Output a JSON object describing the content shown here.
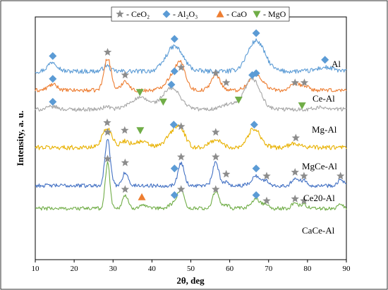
{
  "chart_data": {
    "type": "line",
    "xlabel": "2θ, deg",
    "ylabel": "Intensity, a. u.",
    "xlim": [
      10,
      90
    ],
    "xticks": [
      10,
      20,
      30,
      40,
      50,
      60,
      70,
      80,
      90
    ],
    "grid": false,
    "legend": {
      "position": "top-center",
      "entries": [
        {
          "marker": "star",
          "label": "- CeO₂",
          "color": "#8c8c8c"
        },
        {
          "marker": "diamond",
          "label": "- Al₂O₃",
          "color": "#5b9bd5"
        },
        {
          "marker": "triangle-up",
          "label": "- CaO",
          "color": "#ed7d31"
        },
        {
          "marker": "triangle-down",
          "label": "- MgO",
          "color": "#70ad47"
        }
      ]
    },
    "series": [
      {
        "name": "Al",
        "color": "#5b9bd5",
        "baseline": 20,
        "noise": 1.2,
        "peaks": [
          [
            14.5,
            5,
            1.2
          ],
          [
            28.3,
            3,
            0.8
          ],
          [
            45.8,
            13,
            2.2
          ],
          [
            66.8,
            16,
            2.2
          ],
          [
            84.5,
            2,
            2
          ]
        ],
        "markers": [
          {
            "type": "diamond",
            "x": 14.5,
            "y": 28
          },
          {
            "type": "diamond",
            "x": 45.8,
            "y": 37
          },
          {
            "type": "diamond",
            "x": 66.8,
            "y": 40
          },
          {
            "type": "diamond",
            "x": 84.5,
            "y": 26
          }
        ]
      },
      {
        "name": "Ce-Al",
        "color": "#ed7d31",
        "baseline": 10,
        "noise": 1,
        "peaks": [
          [
            14.5,
            3,
            1.2
          ],
          [
            28.6,
            17,
            0.9
          ],
          [
            33.1,
            5,
            0.9
          ],
          [
            45.8,
            8,
            2
          ],
          [
            47.5,
            9,
            1.2
          ],
          [
            56.4,
            8,
            1.2
          ],
          [
            66.8,
            8,
            1.8
          ],
          [
            76.8,
            3,
            1.2
          ],
          [
            79.2,
            2,
            1.2
          ]
        ],
        "markers": [
          {
            "type": "diamond",
            "x": 14.5,
            "y": 16
          },
          {
            "type": "star",
            "x": 28.6,
            "y": 30
          },
          {
            "type": "star",
            "x": 33.1,
            "y": 18
          },
          {
            "type": "diamond",
            "x": 45.8,
            "y": 20
          },
          {
            "type": "star",
            "x": 47.5,
            "y": 22
          },
          {
            "type": "star",
            "x": 56.4,
            "y": 19
          },
          {
            "type": "star",
            "x": 59.1,
            "y": 14
          },
          {
            "type": "diamond",
            "x": 66.8,
            "y": 19
          },
          {
            "type": "star",
            "x": 76.8,
            "y": 14
          },
          {
            "type": "star",
            "x": 79.2,
            "y": 14
          }
        ]
      },
      {
        "name": "Mg-Al",
        "color": "#a6a6a6",
        "baseline": 0,
        "noise": 1,
        "peaks": [
          [
            14.5,
            1.5,
            1.2
          ],
          [
            28.4,
            1.5,
            0.9
          ],
          [
            36.9,
            6,
            2.5
          ],
          [
            45.0,
            11,
            2.3
          ],
          [
            59.8,
            2.5,
            2
          ],
          [
            65.8,
            16,
            2
          ],
          [
            84.0,
            1,
            2
          ]
        ],
        "markers": [
          {
            "type": "diamond",
            "x": 14.5,
            "y": 4
          },
          {
            "type": "triangle-down",
            "x": 36.9,
            "y": 9
          },
          {
            "type": "triangle-down",
            "x": 42.9,
            "y": 4
          },
          {
            "type": "diamond",
            "x": 45.0,
            "y": 13
          },
          {
            "type": "triangle-down",
            "x": 62.3,
            "y": 5
          },
          {
            "type": "diamond",
            "x": 65.8,
            "y": 18
          },
          {
            "type": "triangle-down",
            "x": 78.6,
            "y": 2
          }
        ]
      },
      {
        "name": "MgCe-Al",
        "color": "#e8b100",
        "baseline": -20,
        "noise": 1.2,
        "peaks": [
          [
            28.5,
            10,
            1.3
          ],
          [
            33.0,
            3,
            1
          ],
          [
            37.0,
            3,
            2
          ],
          [
            45.6,
            8,
            1.8
          ],
          [
            47.5,
            6,
            1.2
          ],
          [
            56.4,
            4,
            1.5
          ],
          [
            66.3,
            10,
            1.6
          ],
          [
            77.0,
            2,
            1.6
          ]
        ],
        "markers": [
          {
            "type": "star",
            "x": 28.5,
            "y": -7
          },
          {
            "type": "star",
            "x": 33.0,
            "y": -11
          },
          {
            "type": "triangle-down",
            "x": 37.0,
            "y": -11
          },
          {
            "type": "diamond",
            "x": 45.6,
            "y": -8
          },
          {
            "type": "star",
            "x": 47.5,
            "y": -9
          },
          {
            "type": "star",
            "x": 56.4,
            "y": -12
          },
          {
            "type": "diamond",
            "x": 66.3,
            "y": -8
          },
          {
            "type": "star",
            "x": 77.0,
            "y": -15
          }
        ]
      },
      {
        "name": "Ce20-Al",
        "color": "#4472c4",
        "baseline": -40,
        "noise": 1,
        "peaks": [
          [
            28.6,
            24,
            0.7
          ],
          [
            33.1,
            7,
            0.7
          ],
          [
            47.5,
            12,
            0.8
          ],
          [
            56.4,
            12,
            0.8
          ],
          [
            59.1,
            2,
            0.7
          ],
          [
            66.8,
            5,
            1.2
          ],
          [
            69.5,
            2,
            0.8
          ],
          [
            76.8,
            4,
            0.8
          ],
          [
            79.1,
            3,
            0.8
          ],
          [
            88.5,
            3,
            0.8
          ]
        ],
        "markers": [
          {
            "type": "star",
            "x": 28.6,
            "y": -12
          },
          {
            "type": "star",
            "x": 33.1,
            "y": -28
          },
          {
            "type": "diamond",
            "x": 45.8,
            "y": -31
          },
          {
            "type": "star",
            "x": 47.5,
            "y": -25
          },
          {
            "type": "star",
            "x": 56.4,
            "y": -25
          },
          {
            "type": "star",
            "x": 59.1,
            "y": -34
          },
          {
            "type": "diamond",
            "x": 66.8,
            "y": -31
          },
          {
            "type": "star",
            "x": 69.5,
            "y": -35
          },
          {
            "type": "star",
            "x": 76.8,
            "y": -33
          },
          {
            "type": "star",
            "x": 79.1,
            "y": -35
          },
          {
            "type": "star",
            "x": 88.5,
            "y": -35
          }
        ]
      },
      {
        "name": "CaCe-Al",
        "color": "#70ad47",
        "baseline": -52,
        "noise": 1,
        "peaks": [
          [
            28.6,
            24,
            0.6
          ],
          [
            33.1,
            7,
            0.7
          ],
          [
            37.4,
            2,
            0.8
          ],
          [
            45.8,
            3,
            1.2
          ],
          [
            47.5,
            9,
            0.8
          ],
          [
            56.4,
            9,
            0.8
          ],
          [
            59.1,
            2,
            0.7
          ],
          [
            66.8,
            5,
            1.2
          ],
          [
            69.5,
            2,
            0.7
          ],
          [
            76.8,
            3,
            0.8
          ],
          [
            79.1,
            2,
            0.8
          ],
          [
            88.5,
            2,
            0.8
          ]
        ],
        "markers": [
          {
            "type": "star",
            "x": 28.6,
            "y": -26
          },
          {
            "type": "star",
            "x": 33.1,
            "y": -42
          },
          {
            "type": "triangle-up",
            "x": 37.4,
            "y": -46
          },
          {
            "type": "diamond",
            "x": 45.8,
            "y": -45
          },
          {
            "type": "star",
            "x": 47.5,
            "y": -42
          },
          {
            "type": "star",
            "x": 56.4,
            "y": -42
          },
          {
            "type": "diamond",
            "x": 66.8,
            "y": -45
          },
          {
            "type": "star",
            "x": 69.5,
            "y": -48
          },
          {
            "type": "star",
            "x": 76.8,
            "y": -47
          },
          {
            "type": "star",
            "x": 79.1,
            "y": -48
          }
        ]
      }
    ]
  }
}
